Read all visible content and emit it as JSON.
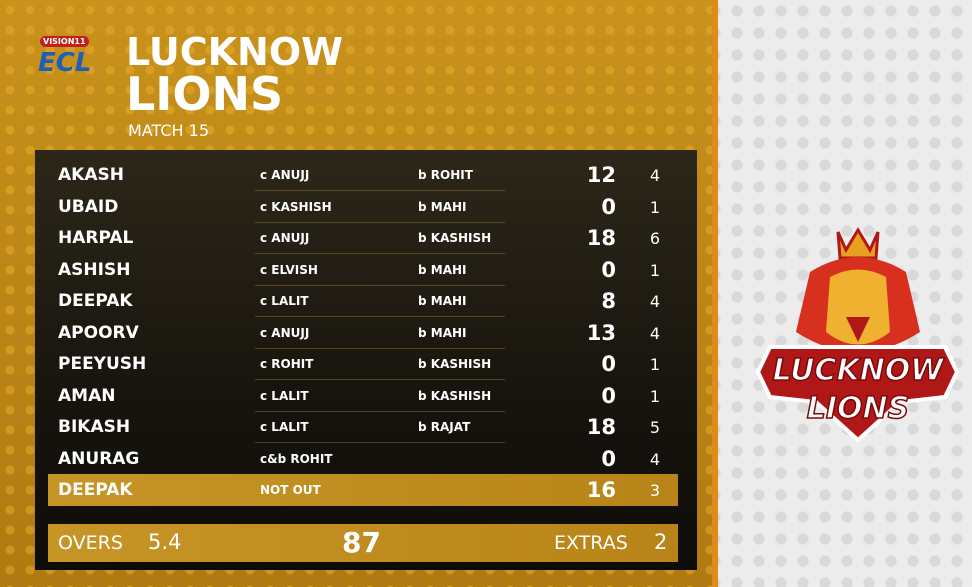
{
  "header": {
    "brand": "VISION11",
    "league": "ECL",
    "title_line1": "LUCKNOW",
    "title_line2": "LIONS",
    "subtitle": "MATCH 15"
  },
  "table": {
    "rows": [
      {
        "batter": "AKASH",
        "dismissal": "c ANUJJ",
        "bowler": "b ROHIT",
        "runs": 12,
        "balls": 4
      },
      {
        "batter": "UBAID",
        "dismissal": "c KASHISH",
        "bowler": "b MAHI",
        "runs": 0,
        "balls": 1
      },
      {
        "batter": "HARPAL",
        "dismissal": "c ANUJJ",
        "bowler": "b KASHISH",
        "runs": 18,
        "balls": 6
      },
      {
        "batter": "ASHISH",
        "dismissal": "c ELVISH",
        "bowler": "b MAHI",
        "runs": 0,
        "balls": 1
      },
      {
        "batter": "DEEPAK",
        "dismissal": "c LALIT",
        "bowler": "b MAHI",
        "runs": 8,
        "balls": 4
      },
      {
        "batter": "APOORV",
        "dismissal": "c ANUJJ",
        "bowler": "b MAHI",
        "runs": 13,
        "balls": 4
      },
      {
        "batter": "PEEYUSH",
        "dismissal": "c ROHIT",
        "bowler": "b KASHISH",
        "runs": 0,
        "balls": 1
      },
      {
        "batter": "AMAN",
        "dismissal": "c LALIT",
        "bowler": "b KASHISH",
        "runs": 0,
        "balls": 1
      },
      {
        "batter": "BIKASH",
        "dismissal": "c LALIT",
        "bowler": "b RAJAT",
        "runs": 18,
        "balls": 5
      },
      {
        "batter": "ANURAG",
        "dismissal": "c&b ROHIT",
        "runs": 0,
        "balls": 4
      },
      {
        "batter": "DEEPAK",
        "dismissal": "NOT OUT",
        "runs": 16,
        "balls": 3
      }
    ]
  },
  "footer": {
    "overs_label": "OVERS",
    "overs": 5.4,
    "total": 87,
    "extras_label": "EXTRAS",
    "extras": 2
  },
  "emblem": {
    "line1": "LUCKNOW",
    "line2": "LIONS"
  }
}
